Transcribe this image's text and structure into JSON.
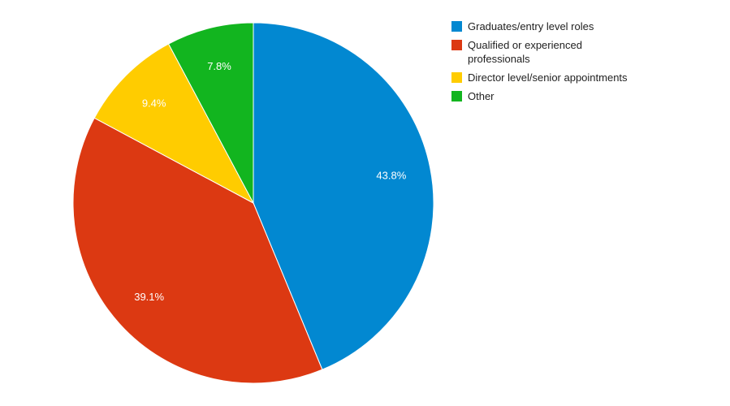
{
  "chart_data": {
    "type": "pie",
    "title": "",
    "legend_position": "right",
    "slices": [
      {
        "label": "Graduates/entry level roles",
        "value": 43.8,
        "display": "43.8%",
        "color": "#0288d1"
      },
      {
        "label": "Qualified or experienced professionals",
        "value": 39.1,
        "display": "39.1%",
        "color": "#dc3912"
      },
      {
        "label": "Director level/senior appointments",
        "value": 9.4,
        "display": "9.4%",
        "color": "#ffcc00"
      },
      {
        "label": "Other",
        "value": 7.8,
        "display": "7.8%",
        "color": "#12b51f"
      }
    ]
  },
  "legend": {
    "items": [
      {
        "label": "Graduates/entry level roles",
        "color": "#0288d1"
      },
      {
        "label": "Qualified or experienced professionals",
        "color": "#dc3912"
      },
      {
        "label": "Director level/senior appointments",
        "color": "#ffcc00"
      },
      {
        "label": "Other",
        "color": "#12b51f"
      }
    ]
  }
}
